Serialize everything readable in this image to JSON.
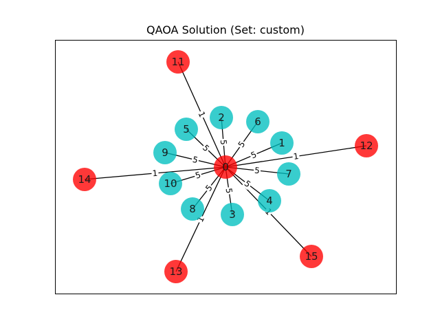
{
  "title": "QAOA Solution (Set: custom)",
  "colors": {
    "selected": "#ff0000",
    "unselected": "#00bfbf",
    "edge": "#000000",
    "frame": "#000000"
  },
  "nodes": [
    {
      "id": "0",
      "group": "selected"
    },
    {
      "id": "1",
      "group": "unselected"
    },
    {
      "id": "2",
      "group": "unselected"
    },
    {
      "id": "3",
      "group": "unselected"
    },
    {
      "id": "4",
      "group": "unselected"
    },
    {
      "id": "5",
      "group": "unselected"
    },
    {
      "id": "6",
      "group": "unselected"
    },
    {
      "id": "7",
      "group": "unselected"
    },
    {
      "id": "8",
      "group": "unselected"
    },
    {
      "id": "9",
      "group": "unselected"
    },
    {
      "id": "10",
      "group": "unselected"
    },
    {
      "id": "11",
      "group": "selected"
    },
    {
      "id": "12",
      "group": "selected"
    },
    {
      "id": "13",
      "group": "selected"
    },
    {
      "id": "14",
      "group": "selected"
    },
    {
      "id": "15",
      "group": "selected"
    }
  ],
  "edges": [
    {
      "source": "0",
      "target": "1",
      "weight": "5"
    },
    {
      "source": "0",
      "target": "2",
      "weight": "5"
    },
    {
      "source": "0",
      "target": "3",
      "weight": "5"
    },
    {
      "source": "0",
      "target": "4",
      "weight": "5"
    },
    {
      "source": "0",
      "target": "5",
      "weight": "5"
    },
    {
      "source": "0",
      "target": "6",
      "weight": "5"
    },
    {
      "source": "0",
      "target": "7",
      "weight": "5"
    },
    {
      "source": "0",
      "target": "8",
      "weight": "5"
    },
    {
      "source": "0",
      "target": "9",
      "weight": "5"
    },
    {
      "source": "0",
      "target": "10",
      "weight": "5"
    },
    {
      "source": "0",
      "target": "11",
      "weight": "1"
    },
    {
      "source": "0",
      "target": "12",
      "weight": "1"
    },
    {
      "source": "0",
      "target": "13",
      "weight": "1"
    },
    {
      "source": "0",
      "target": "14",
      "weight": "1"
    },
    {
      "source": "0",
      "target": "15",
      "weight": "1"
    }
  ]
}
